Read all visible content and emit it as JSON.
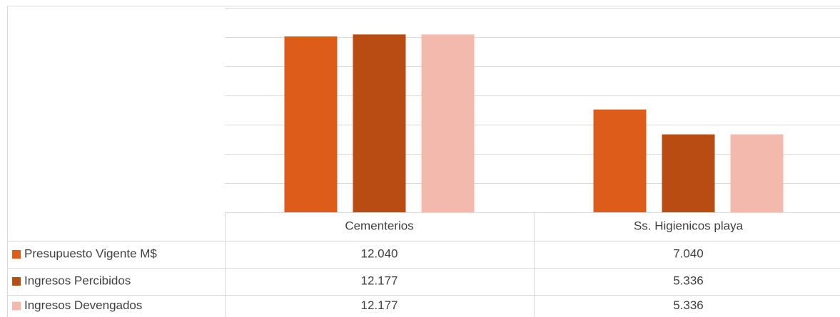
{
  "chart_data": {
    "type": "bar",
    "categories": [
      "Cementerios",
      "Ss. Higienicos  playa"
    ],
    "series": [
      {
        "name": "Presupuesto Vigente M$",
        "color": "#dd5c1a",
        "values": [
          12040,
          7040
        ],
        "value_labels": [
          "12.040",
          "7.040"
        ]
      },
      {
        "name": "Ingresos Percibidos",
        "color": "#b94c12",
        "values": [
          12177,
          5336
        ],
        "value_labels": [
          "12.177",
          "5.336"
        ]
      },
      {
        "name": "Ingresos Devengados",
        "color": "#f4b9ad",
        "values": [
          12177,
          5336
        ],
        "value_labels": [
          "12.177",
          "5.336"
        ]
      }
    ],
    "ylim": [
      0,
      14000
    ],
    "yticks": [
      0,
      2000,
      4000,
      6000,
      8000,
      10000,
      12000,
      14000
    ],
    "grid": true
  }
}
